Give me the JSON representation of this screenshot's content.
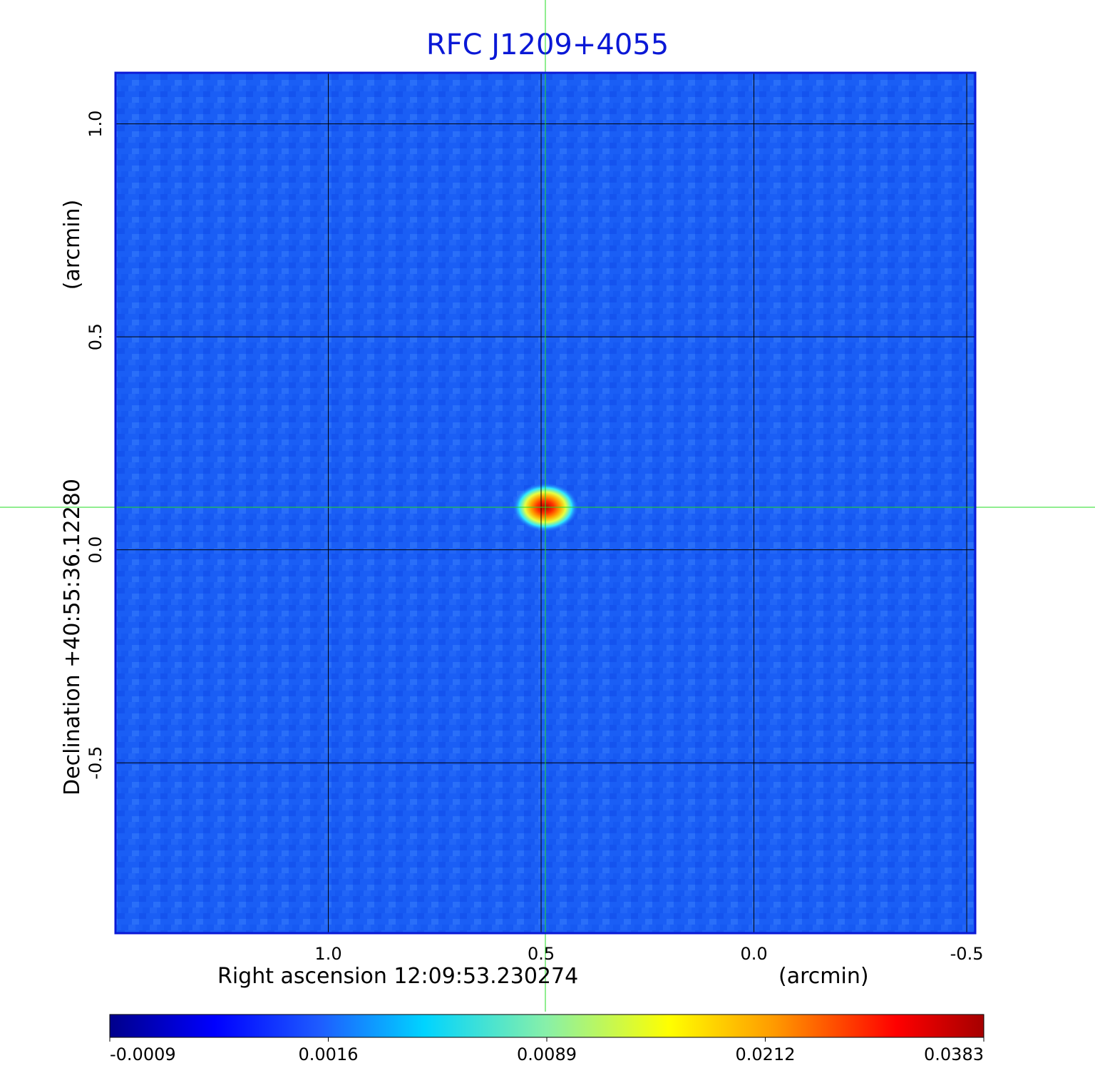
{
  "chart_data": {
    "type": "heatmap",
    "title": "RFC J1209+4055",
    "xlabel": "Right ascension  12:09:53.230274",
    "x_unit_label": "(arcmin)",
    "ylabel": "Declination  +40:55:36.12280",
    "y_unit_label": "(arcmin)",
    "x_ticks": [
      "1.0",
      "0.5",
      "0.0",
      "-0.5"
    ],
    "y_ticks": [
      "1.0",
      "0.5",
      "0.0",
      "-0.5"
    ],
    "xlim": [
      1.5,
      -0.52
    ],
    "ylim": [
      -0.9,
      1.12
    ],
    "grid": true,
    "crosshair": {
      "x": 0.49,
      "y": 0.1,
      "color": "#22dd22"
    },
    "source": {
      "ra_offset": 0.49,
      "dec_offset": 0.1,
      "peak": 0.0383
    },
    "colormap": "jet",
    "colorbar": {
      "ticks": [
        "-0.0009",
        "0.0016",
        "0.0089",
        "0.0212",
        "0.0383"
      ],
      "min": -0.0009,
      "max": 0.0383
    },
    "background_level": 0.0003
  }
}
